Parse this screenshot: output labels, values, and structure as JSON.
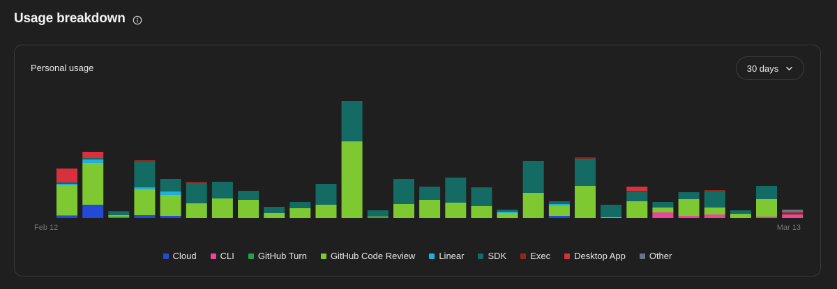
{
  "header": {
    "title": "Usage breakdown"
  },
  "card": {
    "title": "Personal usage",
    "range_label": "30 days",
    "x_start_label": "Feb 12",
    "x_end_label": "Mar 13"
  },
  "chart_data": {
    "type": "bar",
    "stacked": true,
    "x_start": "Feb 12",
    "x_end": "Mar 13",
    "series_order": [
      "Cloud",
      "CLI",
      "GitHub Turn",
      "GitHub Code Review",
      "Linear",
      "SDK",
      "Exec",
      "Desktop App",
      "Other"
    ],
    "colors": {
      "Cloud": "#2449d6",
      "CLI": "#e8479a",
      "GitHub Turn": "#22a04b",
      "GitHub Code Review": "#7ec932",
      "Linear": "#1fb1d9",
      "SDK": "#136b63",
      "Exec": "#8e2a1c",
      "Desktop App": "#d8303c",
      "Other": "#6c7385"
    },
    "values": [
      {
        "Cloud": 3,
        "GitHub Turn": 1,
        "GitHub Code Review": 43,
        "Linear": 2,
        "SDK": 2,
        "Desktop App": 20
      },
      {
        "Cloud": 19,
        "GitHub Code Review": 60,
        "Linear": 5,
        "SDK": 2,
        "Desktop App": 9
      },
      {
        "GitHub Turn": 2,
        "GitHub Code Review": 2,
        "SDK": 5,
        "Exec": 1
      },
      {
        "Cloud": 4,
        "GitHub Code Review": 37,
        "Linear": 3,
        "SDK": 37,
        "Exec": 2
      },
      {
        "Cloud": 3,
        "GitHub Code Review": 30,
        "Linear": 5,
        "SDK": 18
      },
      {
        "GitHub Code Review": 21,
        "SDK": 29,
        "Exec": 2
      },
      {
        "GitHub Code Review": 28,
        "SDK": 24
      },
      {
        "GitHub Code Review": 26,
        "SDK": 13
      },
      {
        "GitHub Code Review": 7,
        "SDK": 9
      },
      {
        "GitHub Code Review": 14,
        "SDK": 9
      },
      {
        "GitHub Code Review": 19,
        "SDK": 30
      },
      {
        "GitHub Code Review": 110,
        "SDK": 58
      },
      {
        "GitHub Turn": 1,
        "GitHub Code Review": 1,
        "SDK": 9
      },
      {
        "GitHub Code Review": 20,
        "SDK": 36
      },
      {
        "GitHub Code Review": 26,
        "SDK": 19
      },
      {
        "GitHub Code Review": 22,
        "SDK": 36
      },
      {
        "GitHub Code Review": 17,
        "SDK": 27
      },
      {
        "GitHub Code Review": 7,
        "Linear": 2,
        "SDK": 3
      },
      {
        "GitHub Code Review": 36,
        "SDK": 46
      },
      {
        "Cloud": 3,
        "GitHub Code Review": 15,
        "Linear": 2,
        "SDK": 4
      },
      {
        "GitHub Code Review": 46,
        "SDK": 39,
        "Exec": 2
      },
      {
        "GitHub Code Review": 1,
        "SDK": 18
      },
      {
        "Exec": 2,
        "GitHub Code Review": 24,
        "SDK": 13,
        "Desktop App": 6
      },
      {
        "CLI": 8,
        "GitHub Code Review": 7,
        "SDK": 8
      },
      {
        "CLI": 3,
        "GitHub Code Review": 24,
        "SDK": 10
      },
      {
        "CLI": 5,
        "GitHub Code Review": 10,
        "SDK": 23,
        "Exec": 2
      },
      {
        "GitHub Code Review": 6,
        "SDK": 5
      },
      {
        "CLI": 2,
        "GitHub Code Review": 25,
        "SDK": 19
      },
      {
        "CLI": 5,
        "Exec": 3,
        "Other": 4
      }
    ]
  },
  "legend": [
    {
      "name": "Cloud",
      "color": "#2449d6"
    },
    {
      "name": "CLI",
      "color": "#e8479a"
    },
    {
      "name": "GitHub Turn",
      "color": "#22a04b"
    },
    {
      "name": "GitHub Code Review",
      "color": "#7ec932"
    },
    {
      "name": "Linear",
      "color": "#1fb1d9"
    },
    {
      "name": "SDK",
      "color": "#136b63"
    },
    {
      "name": "Exec",
      "color": "#8e2a1c"
    },
    {
      "name": "Desktop App",
      "color": "#d8303c"
    },
    {
      "name": "Other",
      "color": "#6c7385"
    }
  ]
}
